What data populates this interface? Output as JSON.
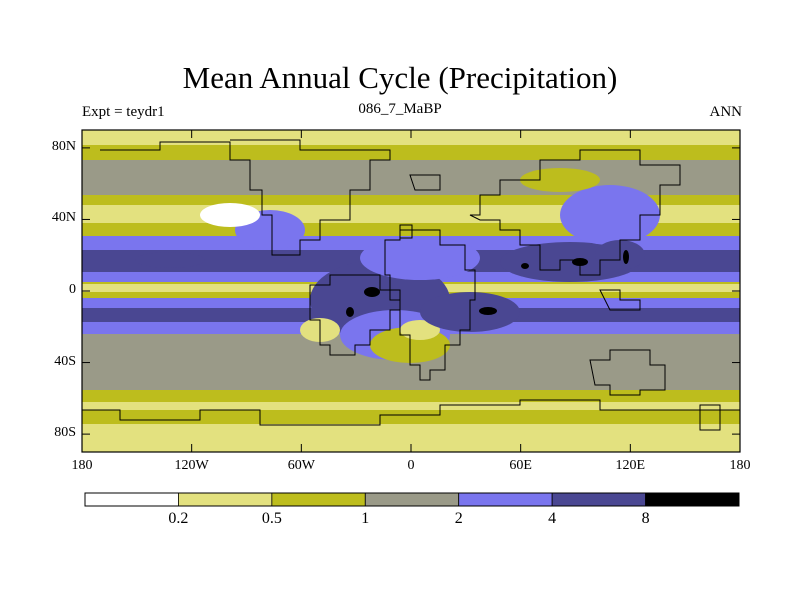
{
  "title": "Mean Annual Cycle (Precipitation)",
  "subtitle_left": "Expt = teydr1",
  "subtitle_center": "086_7_MaBP",
  "subtitle_right": "ANN",
  "lat_ticks": [
    {
      "label": "80N",
      "lat": 80
    },
    {
      "label": "40N",
      "lat": 40
    },
    {
      "label": "0",
      "lat": 0
    },
    {
      "label": "40S",
      "lat": -40
    },
    {
      "label": "80S",
      "lat": -80
    }
  ],
  "lon_ticks": [
    {
      "label": "180",
      "lon": -180
    },
    {
      "label": "120W",
      "lon": -120
    },
    {
      "label": "60W",
      "lon": -60
    },
    {
      "label": "0",
      "lon": 0
    },
    {
      "label": "60E",
      "lon": 60
    },
    {
      "label": "120E",
      "lon": 120
    },
    {
      "label": "180",
      "lon": 180
    }
  ],
  "colorbar": {
    "levels": [
      "0.2",
      "0.5",
      "1",
      "2",
      "4",
      "8"
    ],
    "colors": [
      "#ffffff",
      "#e3e17f",
      "#bdbd1d",
      "#9a9a88",
      "#7a75ee",
      "#4a4792",
      "#000000"
    ]
  }
}
